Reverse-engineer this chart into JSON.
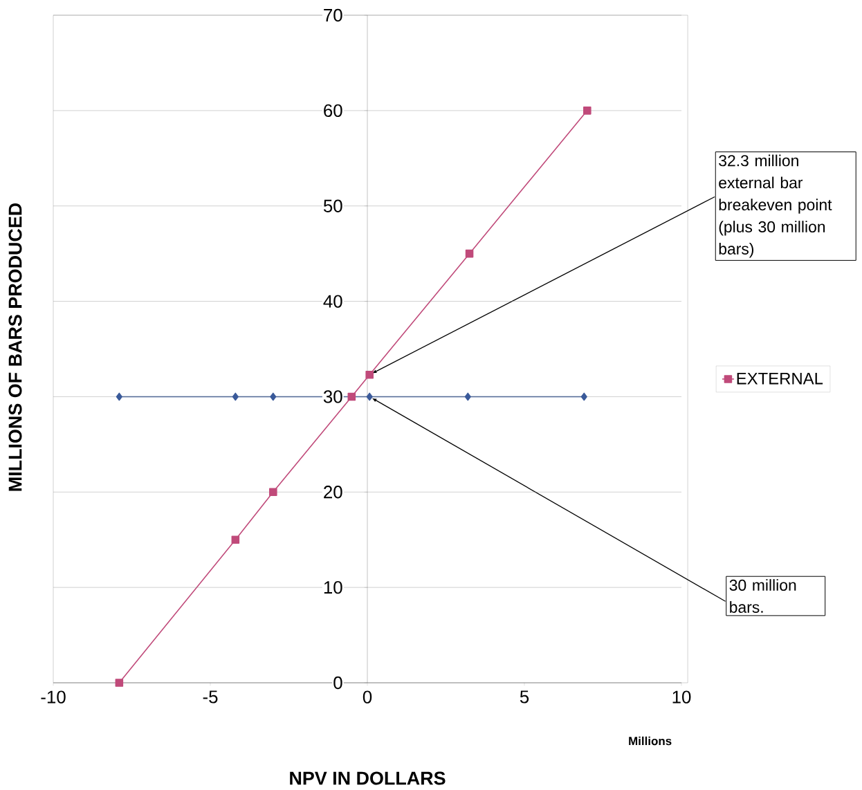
{
  "chart_data": {
    "type": "line",
    "xlabel": "NPV IN DOLLARS",
    "ylabel": "MILLIONS OF BARS PRODUCED",
    "xlim": [
      -10,
      10
    ],
    "xticks": [
      -10,
      -5,
      0,
      5,
      10
    ],
    "ylim": [
      0,
      70
    ],
    "yticks": [
      0,
      10,
      20,
      30,
      40,
      50,
      60,
      70
    ],
    "grid": "y",
    "legend": "right",
    "series": [
      {
        "color": "#3a5a9a",
        "marker": "diamond",
        "x": [
          -7.9,
          -4.2,
          -3.0,
          0.07,
          3.2,
          6.9
        ],
        "values": [
          30,
          30,
          30,
          30,
          30,
          30
        ]
      },
      {
        "name": "EXTERNAL",
        "color": "#c04a7a",
        "marker": "square",
        "x": [
          -7.9,
          -4.2,
          -3.0,
          -0.5,
          0.07,
          3.25,
          7.0
        ],
        "values": [
          0,
          15,
          20,
          30,
          32.3,
          45,
          60
        ]
      }
    ],
    "annotations": [
      "32.3 million external bar breakeven point (plus 30 million bars)",
      "30 million bars.",
      "Millions"
    ]
  }
}
